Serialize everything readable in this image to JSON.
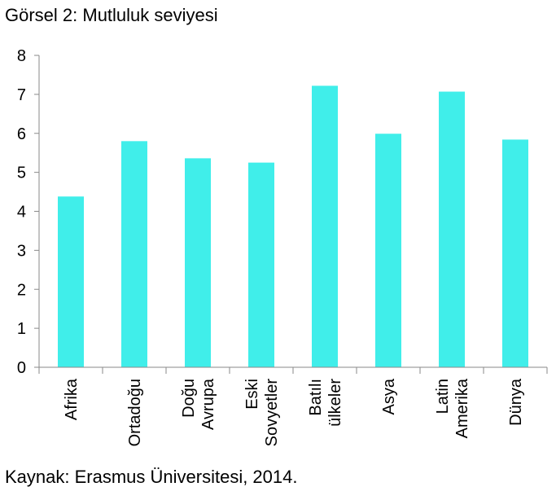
{
  "title": "Görsel 2: Mutluluk seviyesi",
  "source": "Kaynak: Erasmus Üniversitesi, 2014.",
  "chart_data": {
    "type": "bar",
    "title": "Görsel 2: Mutluluk seviyesi",
    "xlabel": "",
    "ylabel": "",
    "ylim": [
      0,
      8
    ],
    "yticks": [
      0,
      1,
      2,
      3,
      4,
      5,
      6,
      7,
      8
    ],
    "grid": false,
    "bar_color": "#40EEEA",
    "categories": [
      [
        "Afrika"
      ],
      [
        "Ortadoğu"
      ],
      [
        "Doğu",
        "Avrupa"
      ],
      [
        "Eski",
        "Sovyetler"
      ],
      [
        "Batılı",
        "ülkeler"
      ],
      [
        "Asya"
      ],
      [
        "Latin",
        "Amerika"
      ],
      [
        "Dünya"
      ]
    ],
    "values": [
      4.38,
      5.8,
      5.36,
      5.25,
      7.22,
      5.99,
      7.07,
      5.84
    ]
  }
}
